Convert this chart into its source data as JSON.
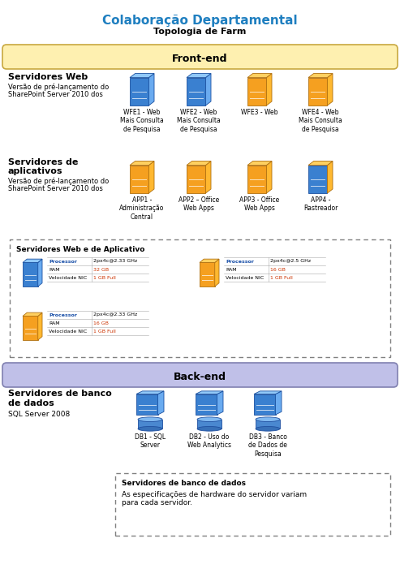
{
  "title": "Colaboração Departamental",
  "subtitle": "Topologia de Farm",
  "title_color": "#1F7FC0",
  "frontend_label": "Front-end",
  "backend_label": "Back-end",
  "frontend_band_color": "#FEF0B0",
  "frontend_band_edge": "#C8A840",
  "backend_band_color": "#C0C0E8",
  "backend_band_edge": "#8080B0",
  "web_servers_title": "Servidores Web",
  "web_servers_sub1": "Versão de pré-lançamento do",
  "web_servers_sub2": "SharePoint Server 2010 dos",
  "app_servers_title1": "Servidores de",
  "app_servers_title2": "aplicativos",
  "app_servers_sub1": "Versão de pré-lançamento do",
  "app_servers_sub2": "SharePoint Server 2010 dos",
  "db_servers_title1": "Servidores de banco",
  "db_servers_title2": "de dados",
  "db_servers_sub": "SQL Server 2008",
  "wfe_labels": [
    "WFE1 - Web\nMais Consulta\nde Pesquisa",
    "WFE2 - Web\nMais Consulta\nde Pesquisa",
    "WFE3 - Web",
    "WFE4 - Web\nMais Consulta\nde Pesquisa"
  ],
  "wfe_colors": [
    "blue",
    "blue",
    "orange",
    "orange"
  ],
  "app_labels": [
    "APP1 -\nAdministração\nCentral",
    "APP2 – Office\nWeb Apps",
    "APP3 - Office\nWeb Apps",
    "APP4 -\nRastreador"
  ],
  "app_colors": [
    "orange",
    "orange",
    "orange",
    "blue_orange"
  ],
  "db_labels": [
    "DB1 - SQL\nServer",
    "DB2 - Uso do\nWeb Analytics",
    "DB3 - Banco\nde Dados de\nPesquisa"
  ],
  "spec_box1_title": "Servidores Web e de Aplicativo",
  "spec_rows_1": [
    [
      "Processor",
      "2px4c@2.33 GHz"
    ],
    [
      "RAM",
      "32 GB"
    ],
    [
      "Velocidade NIC",
      "1 GB Full"
    ]
  ],
  "spec_rows_2": [
    [
      "Processor",
      "2px4c@2.5 GHz"
    ],
    [
      "RAM",
      "16 GB"
    ],
    [
      "Velocidade NIC",
      "1 GB Full"
    ]
  ],
  "spec_rows_3": [
    [
      "Processor",
      "2px4c@2.33 GHz"
    ],
    [
      "RAM",
      "16 GB"
    ],
    [
      "Velocidade NIC",
      "1 GB Full"
    ]
  ],
  "spec_box2_title": "Servidores de banco de dados",
  "spec_box2_text": "As especificações de hardware do servidor variam\npara cada servidor.",
  "bg_color": "#FFFFFF"
}
